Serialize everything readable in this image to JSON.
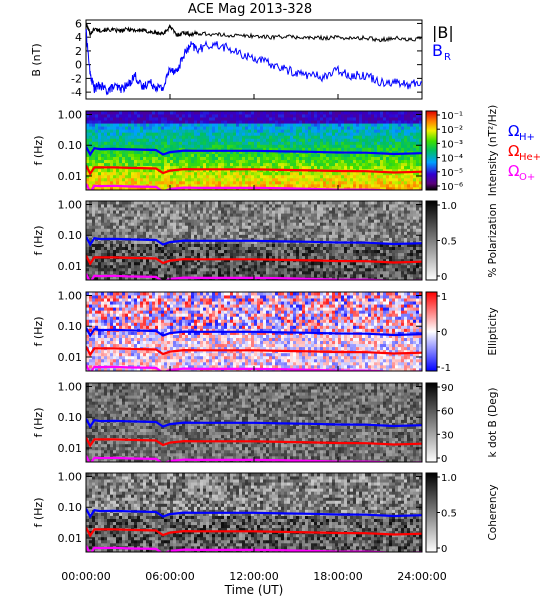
{
  "chart_data": {
    "type": "heatmap",
    "title": "ACE Mag 2013-328",
    "xlabel": "Time (UT)",
    "x_ticks": [
      "00:00:00",
      "06:00:00",
      "12:00:00",
      "18:00:00",
      "24:00:00"
    ],
    "x_range_hours": [
      0,
      24
    ],
    "line_panel": {
      "ylabel": "B (nT)",
      "y_ticks": [
        "6",
        "4",
        "2",
        "0",
        "-2",
        "-4"
      ],
      "ylim": [
        -5,
        6.5
      ],
      "series": [
        {
          "name": "|B|",
          "color": "#000000",
          "x": [
            0,
            0.3,
            0.6,
            1.0,
            1.5,
            2.0,
            2.5,
            3.0,
            3.5,
            4.0,
            4.5,
            5.0,
            5.5,
            6.0,
            6.5,
            7.0,
            7.5,
            8.0,
            9.0,
            10.0,
            11.0,
            12.0,
            13.0,
            14.0,
            15.0,
            16.0,
            17.0,
            18.0,
            19.0,
            20.0,
            21.0,
            22.0,
            23.0,
            24.0
          ],
          "values": [
            6.0,
            4.5,
            5.2,
            5.0,
            5.1,
            5.0,
            4.9,
            5.2,
            5.0,
            5.0,
            4.8,
            4.6,
            4.5,
            5.5,
            4.3,
            4.7,
            4.4,
            4.6,
            4.4,
            4.3,
            4.2,
            4.2,
            4.0,
            4.1,
            4.0,
            3.9,
            3.9,
            4.0,
            3.8,
            3.9,
            3.6,
            3.9,
            3.6,
            3.8
          ]
        },
        {
          "name": "B_R",
          "color": "#0000ff",
          "x": [
            0,
            0.3,
            0.6,
            1.0,
            1.5,
            2.0,
            2.5,
            3.0,
            3.5,
            4.0,
            4.5,
            5.0,
            5.5,
            6.0,
            6.5,
            7.0,
            7.5,
            8.0,
            9.0,
            10.0,
            11.0,
            12.0,
            13.0,
            14.0,
            15.0,
            16.0,
            17.0,
            18.0,
            19.0,
            20.0,
            21.0,
            22.0,
            23.0,
            24.0
          ],
          "values": [
            5.0,
            -1.5,
            -3.5,
            -3.0,
            -3.8,
            -3.2,
            -3.5,
            -3.0,
            -1.5,
            -3.4,
            -2.5,
            -3.2,
            -3.5,
            -0.5,
            -1.0,
            1.5,
            2.8,
            2.2,
            3.0,
            2.5,
            1.5,
            1.0,
            0.2,
            -0.5,
            -1.2,
            -1.5,
            -1.8,
            -0.8,
            -1.6,
            -1.5,
            -2.5,
            -2.5,
            -3.0,
            -2.5
          ]
        }
      ]
    },
    "spectrogram_panels": [
      {
        "id": "intensity",
        "ylabel": "f (Hz)",
        "y_ticks": [
          "1.00",
          "0.10",
          "0.01"
        ],
        "colorbar_label": "Intensity (nT²/Hz)",
        "colorbar_ticks": [
          "10⁻¹",
          "10⁻²",
          "10⁻³",
          "10⁻⁴",
          "10⁻⁵",
          "10⁻⁶"
        ],
        "colormap": "rainbow"
      },
      {
        "id": "polarization",
        "ylabel": "f (Hz)",
        "y_ticks": [
          "1.00",
          "0.10",
          "0.01"
        ],
        "colorbar_label": "% Polarization",
        "colorbar_ticks": [
          "1.0",
          "0.5",
          "0"
        ],
        "colormap": "gray"
      },
      {
        "id": "ellipticity",
        "ylabel": "f (Hz)",
        "y_ticks": [
          "1.00",
          "0.10",
          "0.01"
        ],
        "colorbar_label": "Ellipticity",
        "colorbar_ticks": [
          "1",
          "0",
          "-1"
        ],
        "colormap": "blue-white-red"
      },
      {
        "id": "kdotb",
        "ylabel": "f (Hz)",
        "y_ticks": [
          "1.00",
          "0.10",
          "0.01"
        ],
        "colorbar_label": "k dot B (Deg)",
        "colorbar_ticks": [
          "90",
          "60",
          "30",
          "0"
        ],
        "colormap": "gray"
      },
      {
        "id": "coherency",
        "ylabel": "f (Hz)",
        "y_ticks": [
          "1.00",
          "0.10",
          "0.01"
        ],
        "colorbar_label": "Coherency",
        "colorbar_ticks": [
          "1.0",
          "0.5",
          "0"
        ],
        "colormap": "gray"
      }
    ],
    "gyrofrequency_lines": [
      {
        "name": "Ω_H+",
        "color": "#0000ff",
        "x": [
          0,
          0.3,
          0.6,
          1,
          2,
          3,
          4,
          5,
          5.5,
          6,
          7,
          8,
          10,
          12,
          14,
          16,
          18,
          20,
          22,
          24
        ],
        "values_hz": [
          0.09,
          0.05,
          0.08,
          0.075,
          0.076,
          0.074,
          0.072,
          0.07,
          0.05,
          0.06,
          0.067,
          0.066,
          0.066,
          0.066,
          0.063,
          0.061,
          0.058,
          0.057,
          0.052,
          0.055
        ]
      },
      {
        "name": "Ω_He+",
        "color": "#ff0000",
        "x": [
          0,
          0.3,
          0.6,
          1,
          2,
          3,
          4,
          5,
          5.5,
          6,
          7,
          8,
          10,
          12,
          14,
          16,
          18,
          20,
          22,
          24
        ],
        "values_hz": [
          0.022,
          0.012,
          0.019,
          0.019,
          0.019,
          0.0185,
          0.018,
          0.0175,
          0.0125,
          0.015,
          0.0168,
          0.0165,
          0.0165,
          0.0165,
          0.0158,
          0.0152,
          0.0145,
          0.0143,
          0.013,
          0.0138
        ]
      },
      {
        "name": "Ω_O+",
        "color": "#ff00ff",
        "x": [
          0,
          0.3,
          0.6,
          1,
          2,
          3,
          4,
          5,
          5.5,
          6,
          7,
          8,
          10,
          12,
          14,
          16,
          18,
          20,
          22,
          24
        ],
        "values_hz": [
          0.0056,
          0.003,
          0.0048,
          0.0047,
          0.0048,
          0.0046,
          0.0045,
          0.0044,
          0.0031,
          0.0038,
          0.0042,
          0.0041,
          0.0041,
          0.0041,
          0.004,
          0.0038,
          0.0036,
          0.0036,
          0.0033,
          0.0034
        ]
      }
    ],
    "legend": {
      "line_panel": [
        "|B|",
        "B",
        "R"
      ],
      "spectrogram": [
        {
          "base": "Ω",
          "sub": "H+",
          "color": "#0000ff"
        },
        {
          "base": "Ω",
          "sub": "He+",
          "color": "#ff0000"
        },
        {
          "base": "Ω",
          "sub": "O+",
          "color": "#ff00ff"
        }
      ]
    }
  }
}
